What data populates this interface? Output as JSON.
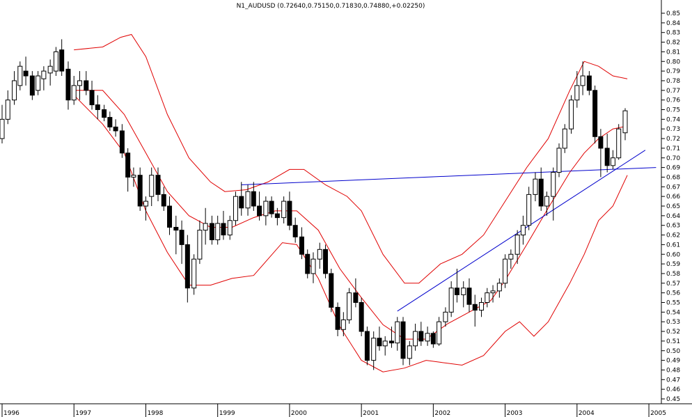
{
  "chart_data": {
    "type": "candlestick",
    "title": "N1_AUDUSD (0.72640,0.75150,0.71830,0.74880,+0.02250)",
    "x_tick_labels": [
      "1996",
      "1997",
      "1998",
      "1999",
      "2000",
      "2001",
      "2002",
      "2003",
      "2004",
      "2005"
    ],
    "y_tick_labels": [
      "0.85",
      "0.84",
      "0.83",
      "0.82",
      "0.81",
      "0.80",
      "0.79",
      "0.78",
      "0.77",
      "0.76",
      "0.75",
      "0.74",
      "0.73",
      "0.72",
      "0.71",
      "0.70",
      "0.69",
      "0.68",
      "0.67",
      "0.66",
      "0.65",
      "0.64",
      "0.63",
      "0.62",
      "0.61",
      "0.60",
      "0.59",
      "0.58",
      "0.57",
      "0.56",
      "0.55",
      "0.54",
      "0.53",
      "0.52",
      "0.51",
      "0.50",
      "0.49",
      "0.48",
      "0.47",
      "0.46",
      "0.45"
    ],
    "x_range": [
      1996.0,
      2005.6
    ],
    "y_range": [
      0.445,
      0.855
    ],
    "grid": false,
    "colors": {
      "candle_up": "#ffffff",
      "candle_down": "#000000",
      "bands": "#e00000",
      "trendlines": "#0000cc",
      "axis": "#000000"
    },
    "candles": [
      {
        "t": 1996.0,
        "o": 0.72,
        "h": 0.755,
        "l": 0.715,
        "c": 0.74
      },
      {
        "t": 1996.08,
        "o": 0.74,
        "h": 0.77,
        "l": 0.735,
        "c": 0.76
      },
      {
        "t": 1996.17,
        "o": 0.76,
        "h": 0.79,
        "l": 0.755,
        "c": 0.78
      },
      {
        "t": 1996.25,
        "o": 0.775,
        "h": 0.8,
        "l": 0.77,
        "c": 0.795
      },
      {
        "t": 1996.33,
        "o": 0.79,
        "h": 0.805,
        "l": 0.775,
        "c": 0.785
      },
      {
        "t": 1996.42,
        "o": 0.785,
        "h": 0.79,
        "l": 0.76,
        "c": 0.765
      },
      {
        "t": 1996.5,
        "o": 0.77,
        "h": 0.79,
        "l": 0.765,
        "c": 0.785
      },
      {
        "t": 1996.58,
        "o": 0.782,
        "h": 0.795,
        "l": 0.77,
        "c": 0.79
      },
      {
        "t": 1996.67,
        "o": 0.788,
        "h": 0.802,
        "l": 0.775,
        "c": 0.795
      },
      {
        "t": 1996.75,
        "o": 0.79,
        "h": 0.815,
        "l": 0.785,
        "c": 0.81
      },
      {
        "t": 1996.83,
        "o": 0.812,
        "h": 0.823,
        "l": 0.785,
        "c": 0.79
      },
      {
        "t": 1996.92,
        "o": 0.792,
        "h": 0.8,
        "l": 0.75,
        "c": 0.76
      },
      {
        "t": 1997.0,
        "o": 0.76,
        "h": 0.785,
        "l": 0.755,
        "c": 0.775
      },
      {
        "t": 1997.08,
        "o": 0.775,
        "h": 0.79,
        "l": 0.76,
        "c": 0.78
      },
      {
        "t": 1997.17,
        "o": 0.78,
        "h": 0.79,
        "l": 0.765,
        "c": 0.77
      },
      {
        "t": 1997.25,
        "o": 0.77,
        "h": 0.78,
        "l": 0.75,
        "c": 0.755
      },
      {
        "t": 1997.33,
        "o": 0.755,
        "h": 0.765,
        "l": 0.74,
        "c": 0.75
      },
      {
        "t": 1997.42,
        "o": 0.75,
        "h": 0.755,
        "l": 0.738,
        "c": 0.742
      },
      {
        "t": 1997.5,
        "o": 0.742,
        "h": 0.748,
        "l": 0.728,
        "c": 0.732
      },
      {
        "t": 1997.58,
        "o": 0.732,
        "h": 0.74,
        "l": 0.722,
        "c": 0.728
      },
      {
        "t": 1997.67,
        "o": 0.728,
        "h": 0.735,
        "l": 0.7,
        "c": 0.705
      },
      {
        "t": 1997.75,
        "o": 0.705,
        "h": 0.71,
        "l": 0.665,
        "c": 0.68
      },
      {
        "t": 1997.83,
        "o": 0.68,
        "h": 0.69,
        "l": 0.67,
        "c": 0.682
      },
      {
        "t": 1997.92,
        "o": 0.682,
        "h": 0.69,
        "l": 0.645,
        "c": 0.65
      },
      {
        "t": 1998.0,
        "o": 0.65,
        "h": 0.66,
        "l": 0.635,
        "c": 0.655
      },
      {
        "t": 1998.08,
        "o": 0.66,
        "h": 0.69,
        "l": 0.65,
        "c": 0.682
      },
      {
        "t": 1998.17,
        "o": 0.682,
        "h": 0.69,
        "l": 0.655,
        "c": 0.662
      },
      {
        "t": 1998.25,
        "o": 0.662,
        "h": 0.67,
        "l": 0.645,
        "c": 0.65
      },
      {
        "t": 1998.33,
        "o": 0.65,
        "h": 0.66,
        "l": 0.62,
        "c": 0.628
      },
      {
        "t": 1998.42,
        "o": 0.628,
        "h": 0.64,
        "l": 0.6,
        "c": 0.625
      },
      {
        "t": 1998.5,
        "o": 0.625,
        "h": 0.635,
        "l": 0.59,
        "c": 0.61
      },
      {
        "t": 1998.58,
        "o": 0.61,
        "h": 0.62,
        "l": 0.55,
        "c": 0.565
      },
      {
        "t": 1998.67,
        "o": 0.565,
        "h": 0.6,
        "l": 0.558,
        "c": 0.595
      },
      {
        "t": 1998.75,
        "o": 0.595,
        "h": 0.635,
        "l": 0.59,
        "c": 0.625
      },
      {
        "t": 1998.83,
        "o": 0.625,
        "h": 0.648,
        "l": 0.61,
        "c": 0.632
      },
      {
        "t": 1998.92,
        "o": 0.632,
        "h": 0.64,
        "l": 0.61,
        "c": 0.615
      },
      {
        "t": 1999.0,
        "o": 0.615,
        "h": 0.64,
        "l": 0.61,
        "c": 0.632
      },
      {
        "t": 1999.08,
        "o": 0.632,
        "h": 0.645,
        "l": 0.615,
        "c": 0.62
      },
      {
        "t": 1999.17,
        "o": 0.62,
        "h": 0.64,
        "l": 0.615,
        "c": 0.635
      },
      {
        "t": 1999.25,
        "o": 0.635,
        "h": 0.665,
        "l": 0.63,
        "c": 0.66
      },
      {
        "t": 1999.33,
        "o": 0.66,
        "h": 0.675,
        "l": 0.64,
        "c": 0.648
      },
      {
        "t": 1999.42,
        "o": 0.648,
        "h": 0.672,
        "l": 0.64,
        "c": 0.665
      },
      {
        "t": 1999.5,
        "o": 0.665,
        "h": 0.675,
        "l": 0.645,
        "c": 0.65
      },
      {
        "t": 1999.58,
        "o": 0.65,
        "h": 0.665,
        "l": 0.635,
        "c": 0.64
      },
      {
        "t": 1999.67,
        "o": 0.64,
        "h": 0.66,
        "l": 0.63,
        "c": 0.655
      },
      {
        "t": 1999.75,
        "o": 0.655,
        "h": 0.66,
        "l": 0.638,
        "c": 0.642
      },
      {
        "t": 1999.83,
        "o": 0.642,
        "h": 0.648,
        "l": 0.63,
        "c": 0.638
      },
      {
        "t": 1999.92,
        "o": 0.638,
        "h": 0.66,
        "l": 0.632,
        "c": 0.655
      },
      {
        "t": 2000.0,
        "o": 0.655,
        "h": 0.665,
        "l": 0.625,
        "c": 0.63
      },
      {
        "t": 2000.08,
        "o": 0.63,
        "h": 0.638,
        "l": 0.612,
        "c": 0.618
      },
      {
        "t": 2000.17,
        "o": 0.618,
        "h": 0.628,
        "l": 0.595,
        "c": 0.6
      },
      {
        "t": 2000.25,
        "o": 0.6,
        "h": 0.605,
        "l": 0.575,
        "c": 0.58
      },
      {
        "t": 2000.33,
        "o": 0.58,
        "h": 0.602,
        "l": 0.57,
        "c": 0.595
      },
      {
        "t": 2000.42,
        "o": 0.595,
        "h": 0.612,
        "l": 0.585,
        "c": 0.605
      },
      {
        "t": 2000.5,
        "o": 0.605,
        "h": 0.61,
        "l": 0.575,
        "c": 0.58
      },
      {
        "t": 2000.58,
        "o": 0.58,
        "h": 0.585,
        "l": 0.54,
        "c": 0.545
      },
      {
        "t": 2000.67,
        "o": 0.545,
        "h": 0.55,
        "l": 0.515,
        "c": 0.522
      },
      {
        "t": 2000.75,
        "o": 0.522,
        "h": 0.54,
        "l": 0.515,
        "c": 0.532
      },
      {
        "t": 2000.83,
        "o": 0.532,
        "h": 0.565,
        "l": 0.528,
        "c": 0.56
      },
      {
        "t": 2000.92,
        "o": 0.56,
        "h": 0.575,
        "l": 0.545,
        "c": 0.55
      },
      {
        "t": 2001.0,
        "o": 0.55,
        "h": 0.555,
        "l": 0.515,
        "c": 0.52
      },
      {
        "t": 2001.08,
        "o": 0.52,
        "h": 0.525,
        "l": 0.485,
        "c": 0.49
      },
      {
        "t": 2001.17,
        "o": 0.49,
        "h": 0.52,
        "l": 0.48,
        "c": 0.513
      },
      {
        "t": 2001.25,
        "o": 0.513,
        "h": 0.525,
        "l": 0.5,
        "c": 0.505
      },
      {
        "t": 2001.33,
        "o": 0.505,
        "h": 0.515,
        "l": 0.495,
        "c": 0.51
      },
      {
        "t": 2001.42,
        "o": 0.51,
        "h": 0.525,
        "l": 0.503,
        "c": 0.508
      },
      {
        "t": 2001.5,
        "o": 0.508,
        "h": 0.535,
        "l": 0.5,
        "c": 0.53
      },
      {
        "t": 2001.58,
        "o": 0.53,
        "h": 0.535,
        "l": 0.485,
        "c": 0.492
      },
      {
        "t": 2001.67,
        "o": 0.492,
        "h": 0.51,
        "l": 0.485,
        "c": 0.505
      },
      {
        "t": 2001.75,
        "o": 0.505,
        "h": 0.528,
        "l": 0.5,
        "c": 0.52
      },
      {
        "t": 2001.83,
        "o": 0.52,
        "h": 0.53,
        "l": 0.505,
        "c": 0.51
      },
      {
        "t": 2001.92,
        "o": 0.51,
        "h": 0.525,
        "l": 0.505,
        "c": 0.518
      },
      {
        "t": 2002.0,
        "o": 0.518,
        "h": 0.52,
        "l": 0.503,
        "c": 0.507
      },
      {
        "t": 2002.08,
        "o": 0.507,
        "h": 0.535,
        "l": 0.505,
        "c": 0.53
      },
      {
        "t": 2002.17,
        "o": 0.53,
        "h": 0.545,
        "l": 0.525,
        "c": 0.54
      },
      {
        "t": 2002.25,
        "o": 0.54,
        "h": 0.572,
        "l": 0.535,
        "c": 0.565
      },
      {
        "t": 2002.33,
        "o": 0.565,
        "h": 0.585,
        "l": 0.55,
        "c": 0.558
      },
      {
        "t": 2002.42,
        "o": 0.558,
        "h": 0.572,
        "l": 0.545,
        "c": 0.565
      },
      {
        "t": 2002.5,
        "o": 0.565,
        "h": 0.575,
        "l": 0.54,
        "c": 0.548
      },
      {
        "t": 2002.58,
        "o": 0.548,
        "h": 0.558,
        "l": 0.525,
        "c": 0.542
      },
      {
        "t": 2002.67,
        "o": 0.542,
        "h": 0.555,
        "l": 0.535,
        "c": 0.55
      },
      {
        "t": 2002.75,
        "o": 0.55,
        "h": 0.565,
        "l": 0.545,
        "c": 0.56
      },
      {
        "t": 2002.83,
        "o": 0.56,
        "h": 0.568,
        "l": 0.55,
        "c": 0.562
      },
      {
        "t": 2002.92,
        "o": 0.562,
        "h": 0.575,
        "l": 0.555,
        "c": 0.57
      },
      {
        "t": 2003.0,
        "o": 0.57,
        "h": 0.6,
        "l": 0.565,
        "c": 0.595
      },
      {
        "t": 2003.08,
        "o": 0.595,
        "h": 0.605,
        "l": 0.585,
        "c": 0.6
      },
      {
        "t": 2003.17,
        "o": 0.6,
        "h": 0.625,
        "l": 0.59,
        "c": 0.62
      },
      {
        "t": 2003.25,
        "o": 0.62,
        "h": 0.64,
        "l": 0.61,
        "c": 0.63
      },
      {
        "t": 2003.33,
        "o": 0.63,
        "h": 0.67,
        "l": 0.625,
        "c": 0.662
      },
      {
        "t": 2003.42,
        "o": 0.662,
        "h": 0.685,
        "l": 0.655,
        "c": 0.678
      },
      {
        "t": 2003.5,
        "o": 0.678,
        "h": 0.69,
        "l": 0.645,
        "c": 0.65
      },
      {
        "t": 2003.58,
        "o": 0.65,
        "h": 0.665,
        "l": 0.64,
        "c": 0.66
      },
      {
        "t": 2003.67,
        "o": 0.66,
        "h": 0.69,
        "l": 0.635,
        "c": 0.685
      },
      {
        "t": 2003.75,
        "o": 0.685,
        "h": 0.715,
        "l": 0.68,
        "c": 0.71
      },
      {
        "t": 2003.83,
        "o": 0.71,
        "h": 0.735,
        "l": 0.705,
        "c": 0.73
      },
      {
        "t": 2003.92,
        "o": 0.73,
        "h": 0.765,
        "l": 0.725,
        "c": 0.76
      },
      {
        "t": 2004.0,
        "o": 0.76,
        "h": 0.79,
        "l": 0.752,
        "c": 0.775
      },
      {
        "t": 2004.08,
        "o": 0.775,
        "h": 0.8,
        "l": 0.765,
        "c": 0.785
      },
      {
        "t": 2004.17,
        "o": 0.785,
        "h": 0.79,
        "l": 0.765,
        "c": 0.77
      },
      {
        "t": 2004.25,
        "o": 0.77,
        "h": 0.775,
        "l": 0.715,
        "c": 0.722
      },
      {
        "t": 2004.33,
        "o": 0.722,
        "h": 0.73,
        "l": 0.68,
        "c": 0.71
      },
      {
        "t": 2004.42,
        "o": 0.71,
        "h": 0.725,
        "l": 0.685,
        "c": 0.692
      },
      {
        "t": 2004.5,
        "o": 0.692,
        "h": 0.708,
        "l": 0.688,
        "c": 0.7
      },
      {
        "t": 2004.58,
        "o": 0.7,
        "h": 0.735,
        "l": 0.698,
        "c": 0.73
      },
      {
        "t": 2004.67,
        "o": 0.726,
        "h": 0.7515,
        "l": 0.7183,
        "c": 0.7488
      }
    ],
    "band_upper": [
      [
        1997.0,
        0.812
      ],
      [
        1997.4,
        0.815
      ],
      [
        1997.65,
        0.825
      ],
      [
        1997.8,
        0.828
      ],
      [
        1998.0,
        0.805
      ],
      [
        1998.3,
        0.745
      ],
      [
        1998.6,
        0.7
      ],
      [
        1998.9,
        0.675
      ],
      [
        1999.1,
        0.665
      ],
      [
        1999.4,
        0.667
      ],
      [
        1999.7,
        0.675
      ],
      [
        2000.0,
        0.688
      ],
      [
        2000.2,
        0.688
      ],
      [
        2000.5,
        0.672
      ],
      [
        2000.8,
        0.66
      ],
      [
        2001.0,
        0.645
      ],
      [
        2001.3,
        0.6
      ],
      [
        2001.6,
        0.57
      ],
      [
        2001.8,
        0.57
      ],
      [
        2002.1,
        0.59
      ],
      [
        2002.4,
        0.6
      ],
      [
        2002.7,
        0.62
      ],
      [
        2003.0,
        0.655
      ],
      [
        2003.3,
        0.69
      ],
      [
        2003.6,
        0.72
      ],
      [
        2003.9,
        0.77
      ],
      [
        2004.1,
        0.8
      ],
      [
        2004.3,
        0.795
      ],
      [
        2004.5,
        0.785
      ],
      [
        2004.7,
        0.782
      ]
    ],
    "band_middle": [
      [
        1997.0,
        0.77
      ],
      [
        1997.4,
        0.77
      ],
      [
        1997.7,
        0.745
      ],
      [
        1998.0,
        0.705
      ],
      [
        1998.3,
        0.665
      ],
      [
        1998.6,
        0.64
      ],
      [
        1998.9,
        0.628
      ],
      [
        1999.2,
        0.628
      ],
      [
        1999.5,
        0.638
      ],
      [
        1999.8,
        0.645
      ],
      [
        2000.1,
        0.645
      ],
      [
        2000.4,
        0.625
      ],
      [
        2000.7,
        0.585
      ],
      [
        2001.0,
        0.555
      ],
      [
        2001.3,
        0.527
      ],
      [
        2001.6,
        0.512
      ],
      [
        2001.9,
        0.512
      ],
      [
        2002.2,
        0.528
      ],
      [
        2002.5,
        0.54
      ],
      [
        2002.8,
        0.552
      ],
      [
        2003.0,
        0.573
      ],
      [
        2003.3,
        0.61
      ],
      [
        2003.6,
        0.648
      ],
      [
        2003.9,
        0.685
      ],
      [
        2004.1,
        0.705
      ],
      [
        2004.3,
        0.72
      ],
      [
        2004.5,
        0.73
      ],
      [
        2004.7,
        0.733
      ]
    ],
    "band_lower": [
      [
        1997.0,
        0.765
      ],
      [
        1997.4,
        0.735
      ],
      [
        1997.7,
        0.705
      ],
      [
        1998.0,
        0.645
      ],
      [
        1998.3,
        0.602
      ],
      [
        1998.6,
        0.568
      ],
      [
        1998.9,
        0.568
      ],
      [
        1999.2,
        0.575
      ],
      [
        1999.5,
        0.578
      ],
      [
        1999.7,
        0.595
      ],
      [
        1999.9,
        0.612
      ],
      [
        2000.1,
        0.61
      ],
      [
        2000.4,
        0.575
      ],
      [
        2000.7,
        0.525
      ],
      [
        2001.0,
        0.49
      ],
      [
        2001.3,
        0.478
      ],
      [
        2001.6,
        0.482
      ],
      [
        2001.9,
        0.49
      ],
      [
        2002.1,
        0.488
      ],
      [
        2002.4,
        0.485
      ],
      [
        2002.7,
        0.495
      ],
      [
        2003.0,
        0.52
      ],
      [
        2003.2,
        0.53
      ],
      [
        2003.4,
        0.515
      ],
      [
        2003.6,
        0.53
      ],
      [
        2003.9,
        0.57
      ],
      [
        2004.1,
        0.6
      ],
      [
        2004.3,
        0.635
      ],
      [
        2004.5,
        0.65
      ],
      [
        2004.7,
        0.682
      ]
    ],
    "trendlines": [
      {
        "from": [
          1999.33,
          0.672
        ],
        "to": [
          2005.1,
          0.69
        ]
      },
      {
        "from": [
          2001.5,
          0.541
        ],
        "to": [
          2004.95,
          0.708
        ]
      }
    ]
  }
}
